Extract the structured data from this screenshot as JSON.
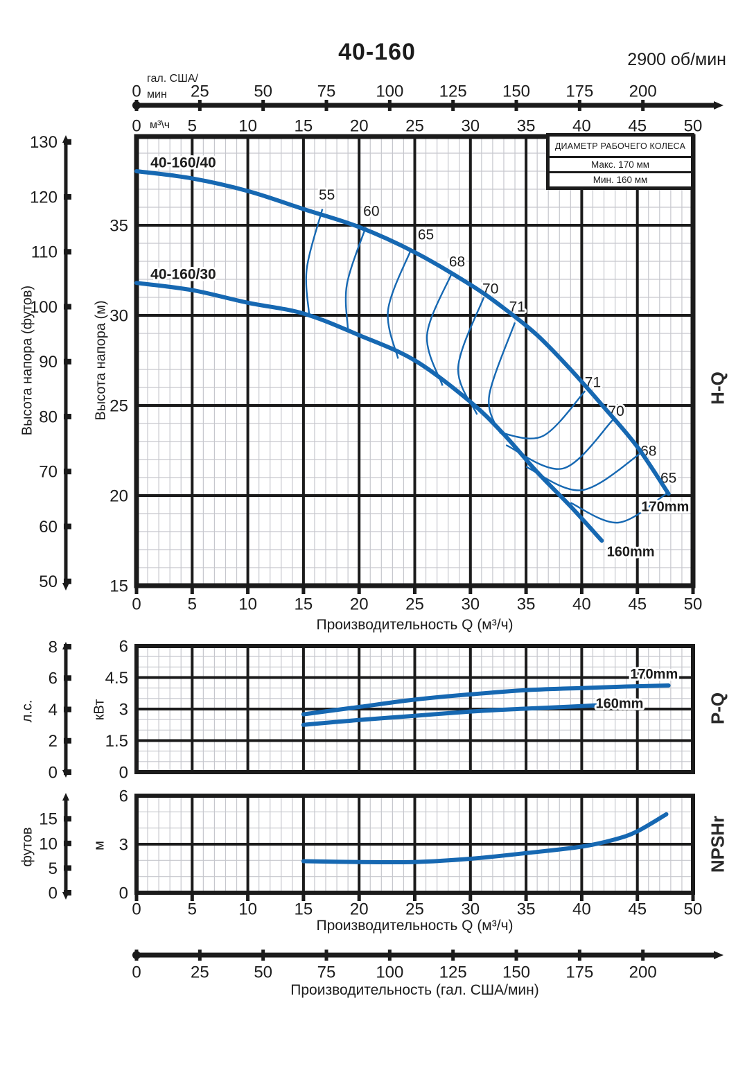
{
  "header": {
    "title": "40-160",
    "speed": "2900 об/мин"
  },
  "legend": {
    "header": "ДИАМЕТР РАБОЧЕГО КОЛЕСА",
    "rows": [
      "Макс. 170 мм",
      "Мин. 160 мм"
    ]
  },
  "units": {
    "gpm_note_line1": "гал. США/",
    "gpm_note_line2": "мин",
    "m3h_note": "м³\\ч"
  },
  "side_labels": {
    "hq": "H-Q",
    "pq": "P-Q",
    "npsh": "NPSHr"
  },
  "gpm_axis": {
    "title": "Производительность (гал. США/мин)",
    "ticks": [
      0,
      25,
      50,
      75,
      100,
      125,
      150,
      175,
      200
    ]
  },
  "colors": {
    "curve_blue": "#1668b2",
    "grid_major": "#1b1b1b",
    "grid_minor": "#c6c7cd",
    "text": "#1c1c1c",
    "background": "#ffffff"
  },
  "chart_data": [
    {
      "id": "hq",
      "type": "line",
      "name": "H-Q",
      "x_axis": {
        "title": "Производительность Q (м³/ч)",
        "min": 0,
        "max": 50,
        "major": 5,
        "minor": 1,
        "ticks": [
          0,
          5,
          10,
          15,
          20,
          25,
          30,
          35,
          40,
          45,
          50
        ]
      },
      "y_axis": {
        "title": "Высота напора (м)",
        "min": 15,
        "max": 39.9,
        "major": 5,
        "minor": 1,
        "ticks": [
          15,
          20,
          25,
          30,
          35
        ]
      },
      "y_axis_secondary": {
        "title": "Высота напора (футов)",
        "ticks": [
          50,
          60,
          70,
          80,
          90,
          100,
          110,
          120,
          130
        ]
      },
      "series": [
        {
          "name": "40-160/40",
          "impeller": "170mm",
          "points": [
            [
              0,
              38.0
            ],
            [
              5,
              37.6
            ],
            [
              10,
              36.9
            ],
            [
              15,
              35.9
            ],
            [
              20,
              34.9
            ],
            [
              25,
              33.5
            ],
            [
              30,
              31.7
            ],
            [
              33,
              30.4
            ],
            [
              36,
              28.9
            ],
            [
              39,
              27.0
            ],
            [
              42,
              24.9
            ],
            [
              45,
              22.7
            ],
            [
              47.8,
              20.1
            ]
          ],
          "name_label_at": [
            4.2,
            38.5
          ],
          "impeller_label_at": [
            47.5,
            19.4
          ]
        },
        {
          "name": "40-160/30",
          "impeller": "160mm",
          "points": [
            [
              0,
              31.8
            ],
            [
              5,
              31.4
            ],
            [
              10,
              30.7
            ],
            [
              15,
              30.1
            ],
            [
              20,
              28.9
            ],
            [
              25,
              27.5
            ],
            [
              30,
              25.2
            ],
            [
              33,
              23.4
            ],
            [
              36,
              21.3
            ],
            [
              39,
              19.4
            ],
            [
              41.8,
              17.5
            ]
          ],
          "name_label_at": [
            4.2,
            32.3
          ],
          "impeller_label_at": [
            44.4,
            16.9
          ]
        }
      ],
      "efficiency_contours": [
        {
          "value": 55,
          "points": [
            [
              16.7,
              35.9
            ],
            [
              15.3,
              32.6
            ],
            [
              15.5,
              30.1
            ]
          ],
          "label_at": [
            17.1,
            36.7
          ]
        },
        {
          "value": 60,
          "points": [
            [
              20.6,
              34.9
            ],
            [
              18.9,
              31.7
            ],
            [
              19.0,
              29.2
            ]
          ],
          "label_at": [
            21.1,
            35.8
          ]
        },
        {
          "value": 65,
          "points": [
            [
              24.7,
              33.7
            ],
            [
              22.6,
              30.3
            ],
            [
              23.5,
              27.6
            ]
          ],
          "label_at": [
            26.0,
            34.5
          ]
        },
        {
          "value": 68,
          "points": [
            [
              28.3,
              32.3
            ],
            [
              26.1,
              28.9
            ],
            [
              27.5,
              26.1
            ]
          ],
          "label_at": [
            28.8,
            33.0
          ]
        },
        {
          "value": 70,
          "points": [
            [
              31.2,
              31.0
            ],
            [
              28.9,
              27.1
            ],
            [
              30.6,
              24.5
            ]
          ],
          "label_at": [
            31.8,
            31.5
          ]
        },
        {
          "value": 71,
          "points": [
            [
              34.0,
              29.6
            ],
            [
              31.7,
              25.6
            ],
            [
              32.4,
              23.7
            ]
          ],
          "label_at": [
            34.2,
            30.5
          ]
        },
        {
          "value": 71,
          "points": [
            [
              32.6,
              23.5
            ],
            [
              36.5,
              23.3
            ],
            [
              40.3,
              25.8
            ]
          ],
          "label_at": [
            41.0,
            26.3
          ]
        },
        {
          "value": 70,
          "points": [
            [
              33.2,
              22.8
            ],
            [
              38.3,
              21.5
            ],
            [
              42.8,
              24.2
            ]
          ],
          "label_at": [
            43.1,
            24.7
          ]
        },
        {
          "value": 68,
          "points": [
            [
              35.0,
              21.6
            ],
            [
              40.0,
              20.3
            ],
            [
              45.4,
              22.4
            ]
          ],
          "label_at": [
            46.0,
            22.5
          ]
        },
        {
          "value": 65,
          "points": [
            [
              39.0,
              19.6
            ],
            [
              43.3,
              18.5
            ],
            [
              47.6,
              20.1
            ]
          ],
          "label_at": [
            47.8,
            21.0
          ]
        }
      ]
    },
    {
      "id": "pq",
      "type": "line",
      "name": "P-Q",
      "x_axis": {
        "min": 0,
        "max": 50,
        "major": 5,
        "minor": 1
      },
      "y_axis": {
        "title": "кВт",
        "min": 0,
        "max": 6,
        "major": 1.5,
        "minor": 0.5,
        "ticks": [
          0,
          1.5,
          3,
          4.5,
          6
        ]
      },
      "y_axis_secondary": {
        "title": "л.с.",
        "ticks": [
          0,
          2,
          4,
          6,
          8
        ]
      },
      "series": [
        {
          "name": "170mm",
          "points": [
            [
              15,
              2.75
            ],
            [
              20,
              3.1
            ],
            [
              25,
              3.45
            ],
            [
              30,
              3.7
            ],
            [
              35,
              3.9
            ],
            [
              40,
              4.0
            ],
            [
              44,
              4.07
            ],
            [
              47.8,
              4.12
            ]
          ],
          "label_at": [
            46.5,
            4.68
          ]
        },
        {
          "name": "160mm",
          "points": [
            [
              15,
              2.25
            ],
            [
              20,
              2.48
            ],
            [
              25,
              2.68
            ],
            [
              30,
              2.88
            ],
            [
              35,
              3.02
            ],
            [
              40,
              3.14
            ],
            [
              41.5,
              3.18
            ]
          ],
          "label_at": [
            43.4,
            3.28
          ]
        }
      ]
    },
    {
      "id": "npsh",
      "type": "line",
      "name": "NPSHr",
      "x_axis": {
        "title": "Производительность Q (м³/ч)",
        "min": 0,
        "max": 50,
        "major": 5,
        "minor": 1,
        "ticks": [
          0,
          5,
          10,
          15,
          20,
          25,
          30,
          35,
          40,
          45,
          50
        ]
      },
      "y_axis": {
        "title": "м",
        "min": 0,
        "max": 6,
        "major": 3,
        "minor": 1,
        "ticks": [
          0,
          3,
          6
        ]
      },
      "y_axis_secondary": {
        "title": "футов",
        "ticks": [
          0,
          5,
          10,
          15
        ]
      },
      "series": [
        {
          "name": "NPSHr",
          "points": [
            [
              15,
              1.95
            ],
            [
              20,
              1.9
            ],
            [
              25,
              1.9
            ],
            [
              30,
              2.1
            ],
            [
              35,
              2.45
            ],
            [
              40,
              2.85
            ],
            [
              43,
              3.3
            ],
            [
              45,
              3.8
            ],
            [
              47.6,
              4.85
            ]
          ]
        }
      ]
    }
  ]
}
